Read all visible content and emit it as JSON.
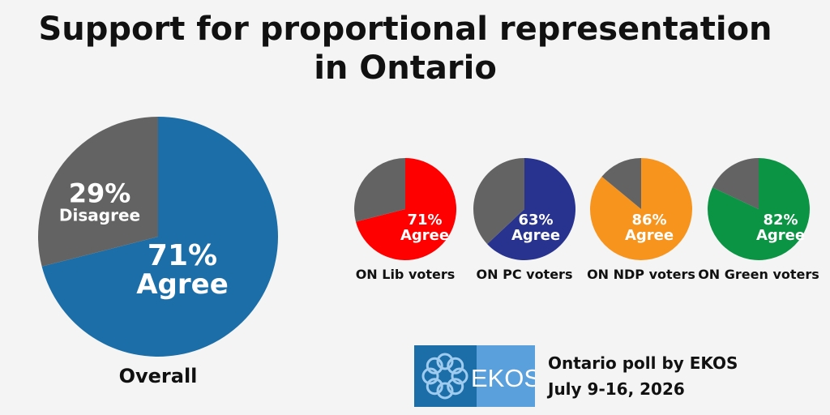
{
  "title": {
    "line1": "Support for proportional representation",
    "line2": "in Ontario"
  },
  "colors": {
    "disagree": "#636363",
    "overall_agree": "#1b6ea8",
    "lib": "#ff0000",
    "pc": "#27338f",
    "ndp": "#f7941d",
    "green": "#0b9444",
    "logo_blue": "#1b6ea8",
    "logo_light": "#5aa0dc"
  },
  "chart_data": [
    {
      "type": "pie",
      "caption": "Overall",
      "slices": [
        {
          "label": "Agree",
          "value": 71,
          "display": "71%"
        },
        {
          "label": "Disagree",
          "value": 29,
          "display": "29%"
        }
      ]
    },
    {
      "type": "pie",
      "caption": "ON Lib voters",
      "slices": [
        {
          "label": "Agree",
          "value": 71,
          "display": "71%"
        },
        {
          "label": "Disagree",
          "value": 29
        }
      ]
    },
    {
      "type": "pie",
      "caption": "ON PC voters",
      "slices": [
        {
          "label": "Agree",
          "value": 63,
          "display": "63%"
        },
        {
          "label": "Disagree",
          "value": 37
        }
      ]
    },
    {
      "type": "pie",
      "caption": "ON NDP voters",
      "slices": [
        {
          "label": "Agree",
          "value": 86,
          "display": "86%"
        },
        {
          "label": "Disagree",
          "value": 14
        }
      ]
    },
    {
      "type": "pie",
      "caption": "ON Green voters",
      "slices": [
        {
          "label": "Agree",
          "value": 82,
          "display": "82%"
        },
        {
          "label": "Disagree",
          "value": 18
        }
      ]
    }
  ],
  "logo": {
    "text": "EKOS"
  },
  "source": {
    "line1": "Ontario poll by EKOS",
    "line2": "July 9-16, 2026"
  }
}
